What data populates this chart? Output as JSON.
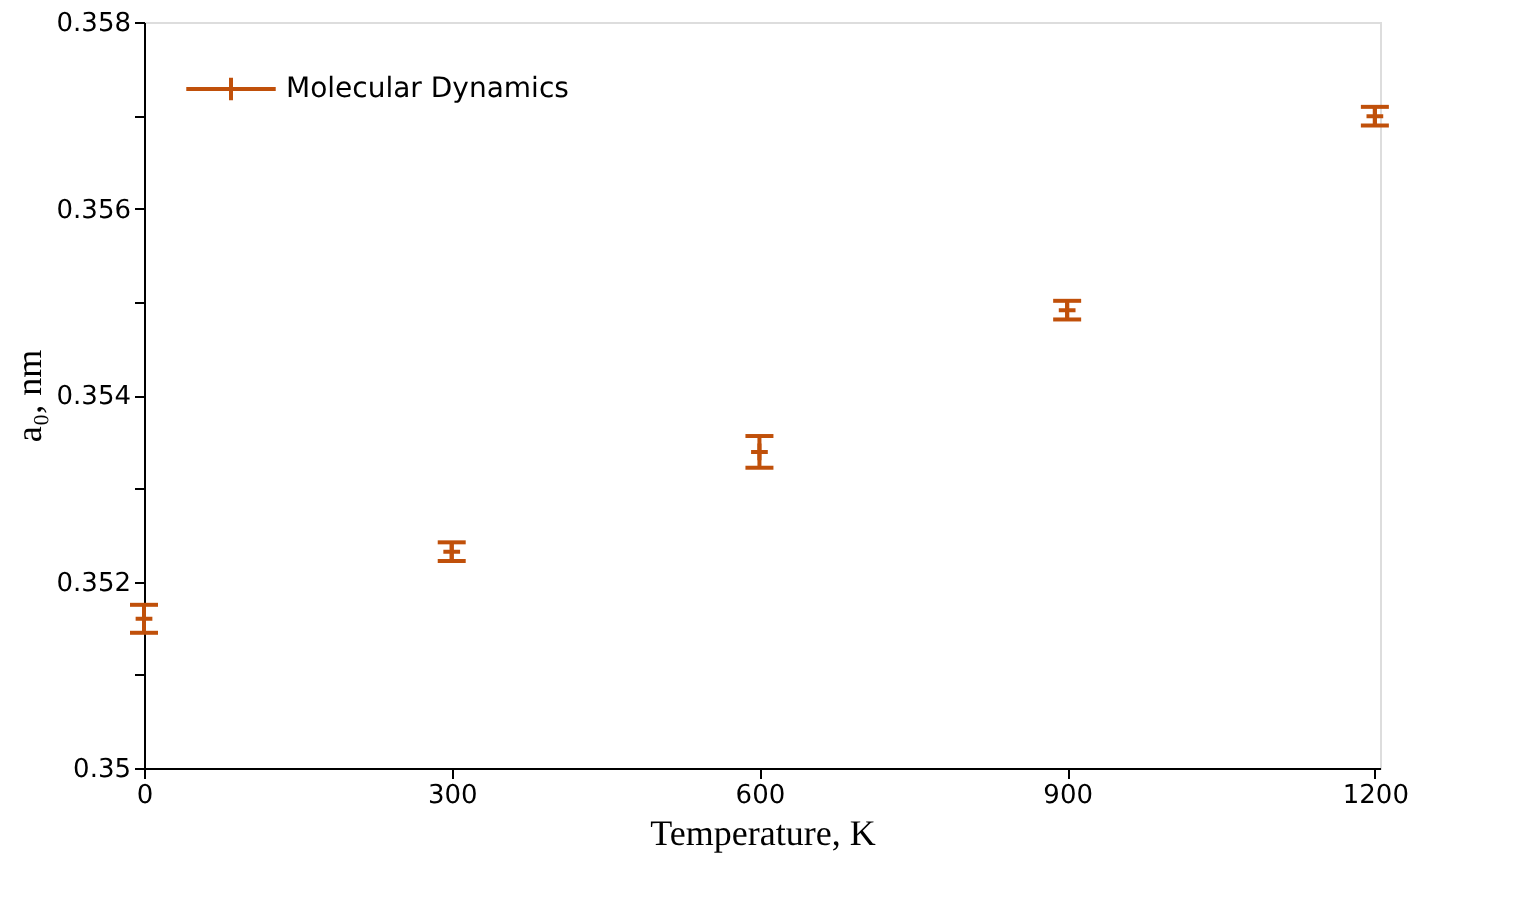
{
  "chart_data": {
    "type": "scatter",
    "xlabel": "Temperature, K",
    "ylabel": "a₀, nm",
    "x": [
      0,
      300,
      600,
      900,
      1200
    ],
    "series": [
      {
        "name": "Molecular Dynamics",
        "color": "#c0500a",
        "values": [
          0.3516,
          0.35232,
          0.35339,
          0.35491,
          0.35699
        ],
        "errors": [
          0.00015,
          0.0001,
          0.00017,
          0.0001,
          0.0001
        ]
      }
    ],
    "xlim": [
      0,
      1205
    ],
    "xticks": [
      0,
      300,
      600,
      900,
      1200
    ],
    "ylim": [
      0.35,
      0.358
    ],
    "yticks": [
      0.35,
      {
        "value": 0.351,
        "label": null
      },
      0.352,
      {
        "value": 0.353,
        "label": null
      },
      0.354,
      {
        "value": 0.355,
        "label": null
      },
      0.356,
      {
        "value": 0.357,
        "label": null
      },
      0.358
    ],
    "legend": "top left",
    "grid": false
  }
}
